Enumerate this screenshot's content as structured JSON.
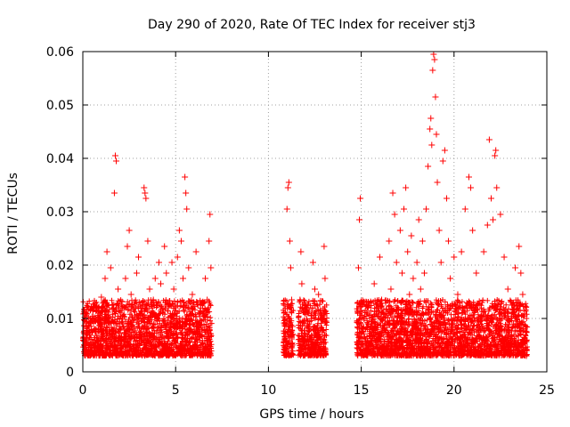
{
  "chart_data": {
    "type": "scatter",
    "title": "Day 290 of 2020, Rate Of TEC Index for receiver stj3",
    "xlabel": "GPS time / hours",
    "ylabel": "ROTI / TECUs",
    "xlim": [
      0,
      25
    ],
    "ylim": [
      0,
      0.06
    ],
    "xticks": [
      0,
      5,
      10,
      15,
      20,
      25
    ],
    "xtick_labels": [
      "0",
      "5",
      "10",
      "15",
      "20",
      "25"
    ],
    "yticks": [
      0,
      0.01,
      0.02,
      0.03,
      0.04,
      0.05,
      0.06
    ],
    "ytick_labels": [
      "0",
      "0.01",
      "0.02",
      "0.03",
      "0.04",
      "0.05",
      "0.06"
    ],
    "grid": true,
    "marker": "+",
    "marker_color": "#ff0000",
    "series": [
      {
        "name": "ROTI",
        "points": [
          [
            0.05,
            0.0065
          ],
          [
            0.1,
            0.011
          ],
          [
            0.2,
            0.0055
          ],
          [
            0.3,
            0.0085
          ],
          [
            0.4,
            0.0045
          ],
          [
            0.5,
            0.0095
          ],
          [
            0.6,
            0.012
          ],
          [
            0.7,
            0.0075
          ],
          [
            0.8,
            0.005
          ],
          [
            0.9,
            0.0105
          ],
          [
            1.0,
            0.014
          ],
          [
            1.1,
            0.007
          ],
          [
            1.2,
            0.0175
          ],
          [
            1.3,
            0.0225
          ],
          [
            1.4,
            0.009
          ],
          [
            1.5,
            0.0195
          ],
          [
            1.6,
            0.0125
          ],
          [
            1.7,
            0.0335
          ],
          [
            1.75,
            0.0405
          ],
          [
            1.8,
            0.0395
          ],
          [
            1.9,
            0.0155
          ],
          [
            2.0,
            0.0085
          ],
          [
            2.1,
            0.0115
          ],
          [
            2.2,
            0.006
          ],
          [
            2.3,
            0.0175
          ],
          [
            2.4,
            0.0235
          ],
          [
            2.5,
            0.0265
          ],
          [
            2.6,
            0.0145
          ],
          [
            2.7,
            0.008
          ],
          [
            2.8,
            0.0105
          ],
          [
            2.9,
            0.0185
          ],
          [
            3.0,
            0.0215
          ],
          [
            3.1,
            0.0125
          ],
          [
            3.2,
            0.0065
          ],
          [
            3.3,
            0.0345
          ],
          [
            3.35,
            0.0335
          ],
          [
            3.4,
            0.0325
          ],
          [
            3.5,
            0.0245
          ],
          [
            3.6,
            0.0155
          ],
          [
            3.7,
            0.009
          ],
          [
            3.8,
            0.0135
          ],
          [
            3.9,
            0.0175
          ],
          [
            4.0,
            0.0095
          ],
          [
            4.1,
            0.0205
          ],
          [
            4.2,
            0.0165
          ],
          [
            4.3,
            0.011
          ],
          [
            4.4,
            0.0235
          ],
          [
            4.5,
            0.0185
          ],
          [
            4.6,
            0.0075
          ],
          [
            4.7,
            0.0125
          ],
          [
            4.8,
            0.0205
          ],
          [
            4.9,
            0.0155
          ],
          [
            5.0,
            0.0085
          ],
          [
            5.1,
            0.0215
          ],
          [
            5.2,
            0.0265
          ],
          [
            5.3,
            0.0245
          ],
          [
            5.4,
            0.0175
          ],
          [
            5.5,
            0.0365
          ],
          [
            5.55,
            0.0335
          ],
          [
            5.6,
            0.0305
          ],
          [
            5.7,
            0.0195
          ],
          [
            5.8,
            0.0105
          ],
          [
            5.9,
            0.0145
          ],
          [
            6.0,
            0.008
          ],
          [
            6.1,
            0.0225
          ],
          [
            6.2,
            0.0125
          ],
          [
            6.3,
            0.0065
          ],
          [
            6.4,
            0.0095
          ],
          [
            6.5,
            0.011
          ],
          [
            6.6,
            0.0175
          ],
          [
            6.7,
            0.0135
          ],
          [
            6.8,
            0.0245
          ],
          [
            6.85,
            0.0295
          ],
          [
            6.9,
            0.0195
          ],
          [
            0.3,
            0.0035
          ],
          [
            1.5,
            0.004
          ],
          [
            2.5,
            0.0045
          ],
          [
            3.5,
            0.0035
          ],
          [
            4.5,
            0.0045
          ],
          [
            5.5,
            0.004
          ],
          [
            6.5,
            0.0035
          ],
          [
            10.85,
            0.0125
          ],
          [
            10.9,
            0.0065
          ],
          [
            10.95,
            0.0045
          ],
          [
            11.0,
            0.0305
          ],
          [
            11.05,
            0.0345
          ],
          [
            11.1,
            0.0355
          ],
          [
            11.15,
            0.0245
          ],
          [
            11.2,
            0.0195
          ],
          [
            11.25,
            0.0135
          ],
          [
            11.3,
            0.0085
          ],
          [
            11.7,
            0.0135
          ],
          [
            11.75,
            0.0225
          ],
          [
            11.8,
            0.0165
          ],
          [
            11.85,
            0.0095
          ],
          [
            11.9,
            0.0055
          ],
          [
            12.0,
            0.0125
          ],
          [
            12.1,
            0.0085
          ],
          [
            12.2,
            0.0045
          ],
          [
            12.3,
            0.0105
          ],
          [
            12.4,
            0.0205
          ],
          [
            12.5,
            0.0155
          ],
          [
            12.6,
            0.0065
          ],
          [
            12.7,
            0.0145
          ],
          [
            12.8,
            0.0115
          ],
          [
            12.9,
            0.0075
          ],
          [
            13.0,
            0.0235
          ],
          [
            13.05,
            0.0175
          ],
          [
            13.1,
            0.0095
          ],
          [
            14.8,
            0.0055
          ],
          [
            14.85,
            0.0195
          ],
          [
            14.9,
            0.0285
          ],
          [
            14.95,
            0.0325
          ],
          [
            15.0,
            0.0115
          ],
          [
            15.1,
            0.0075
          ],
          [
            15.3,
            0.0125
          ],
          [
            15.5,
            0.0085
          ],
          [
            15.7,
            0.0165
          ],
          [
            15.9,
            0.0105
          ],
          [
            16.0,
            0.0215
          ],
          [
            16.1,
            0.0135
          ],
          [
            16.3,
            0.0095
          ],
          [
            16.5,
            0.0245
          ],
          [
            16.6,
            0.0155
          ],
          [
            16.7,
            0.0335
          ],
          [
            16.8,
            0.0295
          ],
          [
            16.9,
            0.0205
          ],
          [
            17.0,
            0.0115
          ],
          [
            17.1,
            0.0265
          ],
          [
            17.2,
            0.0185
          ],
          [
            17.3,
            0.0305
          ],
          [
            17.4,
            0.0345
          ],
          [
            17.5,
            0.0225
          ],
          [
            17.6,
            0.0145
          ],
          [
            17.7,
            0.0255
          ],
          [
            17.8,
            0.0175
          ],
          [
            17.9,
            0.0095
          ],
          [
            18.0,
            0.0205
          ],
          [
            18.1,
            0.0285
          ],
          [
            18.2,
            0.0155
          ],
          [
            18.3,
            0.0245
          ],
          [
            18.4,
            0.0185
          ],
          [
            18.5,
            0.0305
          ],
          [
            18.6,
            0.0385
          ],
          [
            18.7,
            0.0455
          ],
          [
            18.75,
            0.0475
          ],
          [
            18.8,
            0.0425
          ],
          [
            18.85,
            0.0565
          ],
          [
            18.9,
            0.0595
          ],
          [
            18.95,
            0.0585
          ],
          [
            19.0,
            0.0515
          ],
          [
            19.05,
            0.0445
          ],
          [
            19.1,
            0.0355
          ],
          [
            19.2,
            0.0265
          ],
          [
            19.3,
            0.0205
          ],
          [
            19.4,
            0.0395
          ],
          [
            19.5,
            0.0415
          ],
          [
            19.6,
            0.0325
          ],
          [
            19.7,
            0.0245
          ],
          [
            19.8,
            0.0175
          ],
          [
            19.9,
            0.0125
          ],
          [
            20.0,
            0.0215
          ],
          [
            20.2,
            0.0145
          ],
          [
            20.4,
            0.0225
          ],
          [
            20.6,
            0.0305
          ],
          [
            20.8,
            0.0365
          ],
          [
            20.9,
            0.0345
          ],
          [
            21.0,
            0.0265
          ],
          [
            21.2,
            0.0185
          ],
          [
            21.4,
            0.0125
          ],
          [
            21.6,
            0.0225
          ],
          [
            21.8,
            0.0275
          ],
          [
            21.9,
            0.0435
          ],
          [
            22.0,
            0.0325
          ],
          [
            22.1,
            0.0285
          ],
          [
            22.2,
            0.0405
          ],
          [
            22.25,
            0.0415
          ],
          [
            22.3,
            0.0345
          ],
          [
            22.5,
            0.0295
          ],
          [
            22.7,
            0.0215
          ],
          [
            22.9,
            0.0155
          ],
          [
            23.1,
            0.0125
          ],
          [
            23.3,
            0.0195
          ],
          [
            23.5,
            0.0235
          ],
          [
            23.6,
            0.0185
          ],
          [
            23.7,
            0.0145
          ],
          [
            23.8,
            0.0105
          ],
          [
            23.9,
            0.0075
          ],
          [
            15.2,
            0.004
          ],
          [
            16.2,
            0.0035
          ],
          [
            17.2,
            0.0045
          ],
          [
            18.2,
            0.004
          ],
          [
            19.2,
            0.0035
          ],
          [
            20.2,
            0.0045
          ],
          [
            21.2,
            0.004
          ],
          [
            22.2,
            0.0035
          ],
          [
            23.2,
            0.004
          ],
          [
            23.9,
            0.003
          ]
        ]
      }
    ]
  }
}
